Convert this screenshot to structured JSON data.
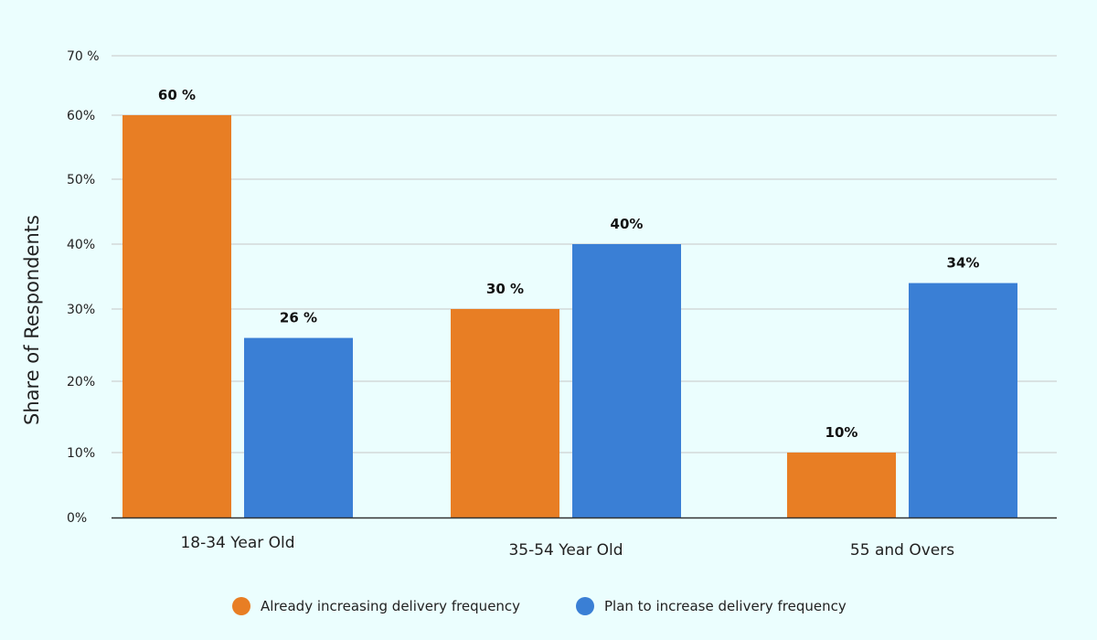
{
  "chart_data": {
    "type": "bar",
    "title": "",
    "xlabel": "",
    "ylabel": "Share of Respondents",
    "ylim": [
      0,
      70
    ],
    "grid": true,
    "legend_position": "bottom",
    "y_ticks": [
      0,
      10,
      20,
      30,
      40,
      50,
      60,
      70
    ],
    "y_tick_labels": [
      "0%",
      "10%",
      "20%",
      "30%",
      "40%",
      "50%",
      "60%",
      "70 %"
    ],
    "categories": [
      "18-34 Year Old",
      "35-54 Year Old",
      "55 and Overs"
    ],
    "series": [
      {
        "name": "Already increasing delivery frequency",
        "color": "#e87e24",
        "values": [
          60,
          30,
          10
        ],
        "labels": [
          "60 %",
          "30 %",
          "10%"
        ]
      },
      {
        "name": "Plan to increase delivery frequency",
        "color": "#3a7fd5",
        "values": [
          26,
          40,
          34
        ],
        "labels": [
          "26 %",
          "40%",
          "34%"
        ]
      }
    ]
  }
}
